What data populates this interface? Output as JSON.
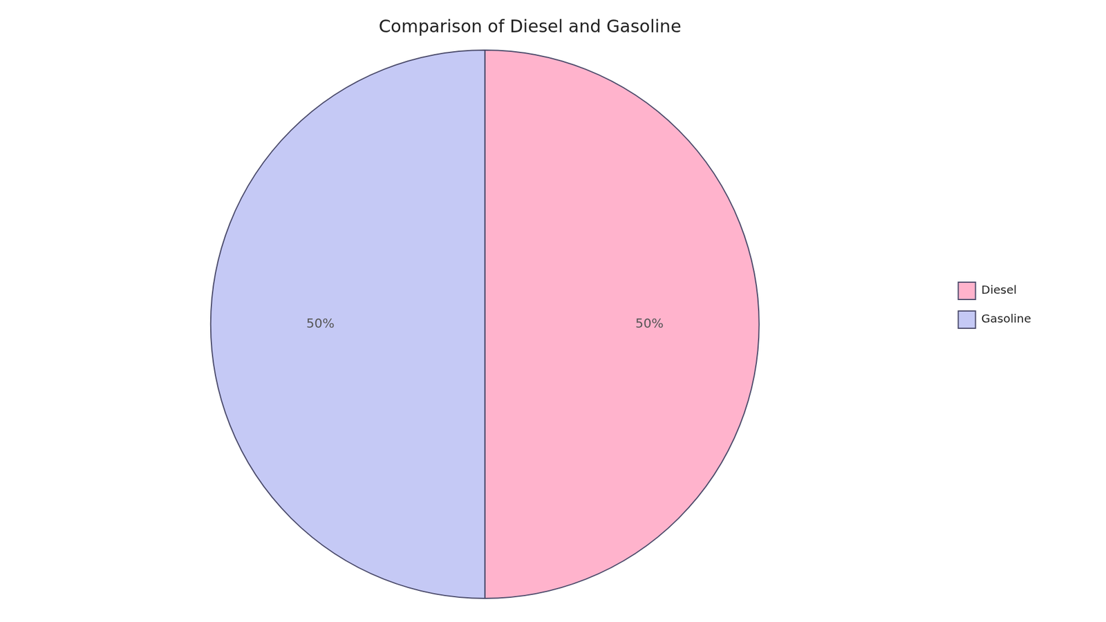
{
  "chart_data": {
    "type": "pie",
    "title": "Comparison of Diesel and Gasoline",
    "categories": [
      "Diesel",
      "Gasoline"
    ],
    "values": [
      50,
      50
    ],
    "value_labels": [
      "50%",
      "50%"
    ],
    "data_labels": true,
    "colors": [
      "#FFB3CC",
      "#C5C9F5"
    ],
    "legend": "right"
  }
}
